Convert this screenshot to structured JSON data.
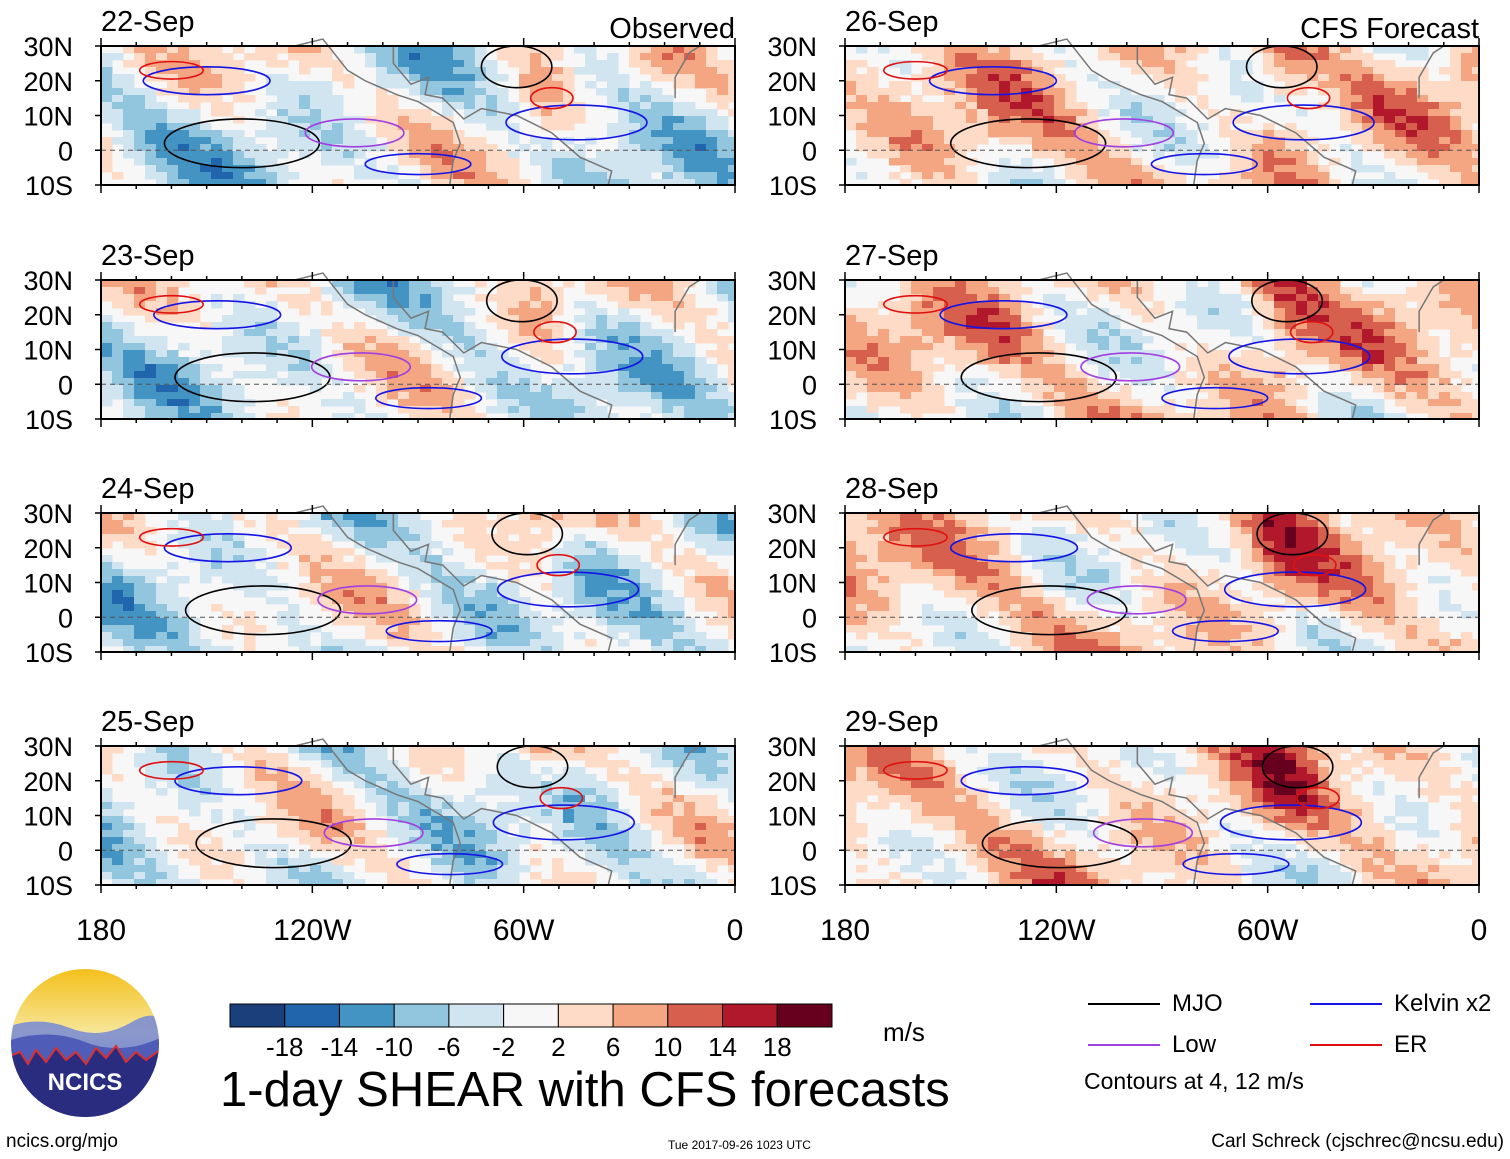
{
  "figure": {
    "title": "1-day SHEAR with CFS forecasts",
    "units": "m/s",
    "contours_note": "Contours at 4, 12 m/s",
    "footer_left": "ncics.org/mjo",
    "footer_mid": "Tue 2017-09-26 1023 UTC",
    "footer_right": "Carl Schreck (cjschrec@ncsu.edu)",
    "logo_text": "NCICS"
  },
  "legend": {
    "mjo": {
      "label": "MJO",
      "color": "#000000"
    },
    "kelvin": {
      "label": "Kelvin x2",
      "color": "#1414e6"
    },
    "low": {
      "label": "Low",
      "color": "#a040e0"
    },
    "er": {
      "label": "ER",
      "color": "#e01010"
    }
  },
  "colorbar": {
    "colors": [
      "#1b3f7a",
      "#2166ac",
      "#4393c3",
      "#92c5de",
      "#d1e5f0",
      "#f7f7f7",
      "#fddbc7",
      "#f4a582",
      "#d6604d",
      "#b2182b",
      "#67001f"
    ],
    "labels": [
      "-18",
      "-14",
      "-10",
      "-6",
      "-2",
      "2",
      "6",
      "10",
      "14",
      "18"
    ]
  },
  "chart_data": {
    "type": "heatmap",
    "variable": "1-day vertical wind shear anomaly",
    "lon_ticks": [
      "180",
      "120W",
      "60W",
      "0"
    ],
    "lat_ticks": [
      "30N",
      "20N",
      "10N",
      "0",
      "10S"
    ],
    "lon_range": [
      -180,
      0
    ],
    "lat_range": [
      -10,
      30
    ],
    "panels": [
      {
        "date": "22-Sep",
        "corner_label": "Observed",
        "column": "observed"
      },
      {
        "date": "23-Sep",
        "corner_label": "",
        "column": "observed"
      },
      {
        "date": "24-Sep",
        "corner_label": "",
        "column": "observed"
      },
      {
        "date": "25-Sep",
        "corner_label": "",
        "column": "observed"
      },
      {
        "date": "26-Sep",
        "corner_label": "CFS Forecast",
        "column": "forecast"
      },
      {
        "date": "27-Sep",
        "corner_label": "",
        "column": "forecast"
      },
      {
        "date": "28-Sep",
        "corner_label": "",
        "column": "forecast"
      },
      {
        "date": "29-Sep",
        "corner_label": "",
        "column": "forecast"
      }
    ]
  }
}
